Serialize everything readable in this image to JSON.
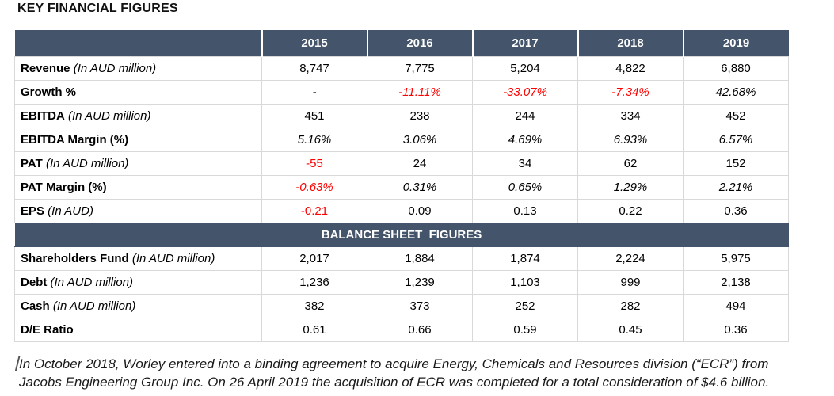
{
  "title": "KEY FINANCIAL FIGURES",
  "colors": {
    "header_background": "#44546A",
    "header_text": "#FFFFFF",
    "negative_text": "#FF0000",
    "grid_line": "#D9D9D9"
  },
  "table": {
    "years": [
      "2015",
      "2016",
      "2017",
      "2018",
      "2019"
    ],
    "income_rows": [
      {
        "label": "Revenue",
        "unit": "(In AUD million)",
        "value_style": "plain",
        "values": [
          "8,747",
          "7,775",
          "5,204",
          "4,822",
          "6,880"
        ]
      },
      {
        "label": "Growth %",
        "unit": "",
        "value_style": "italic",
        "values": [
          "-",
          "-11.11%",
          "-33.07%",
          "-7.34%",
          "42.68%"
        ]
      },
      {
        "label": "EBITDA",
        "unit": "(In AUD million)",
        "value_style": "plain",
        "values": [
          "451",
          "238",
          "244",
          "334",
          "452"
        ]
      },
      {
        "label": "EBITDA Margin (%)",
        "unit": "",
        "value_style": "italic",
        "values": [
          "5.16%",
          "3.06%",
          "4.69%",
          "6.93%",
          "6.57%"
        ]
      },
      {
        "label": "PAT",
        "unit": "(In AUD million)",
        "value_style": "plain",
        "values": [
          "-55",
          "24",
          "34",
          "62",
          "152"
        ]
      },
      {
        "label": "PAT Margin (%)",
        "unit": "",
        "value_style": "italic",
        "values": [
          "-0.63%",
          "0.31%",
          "0.65%",
          "1.29%",
          "2.21%"
        ]
      },
      {
        "label": "EPS",
        "unit": "(In AUD)",
        "value_style": "plain",
        "values": [
          "-0.21",
          "0.09",
          "0.13",
          "0.22",
          "0.36"
        ]
      }
    ],
    "section_header": "BALANCE SHEET  FIGURES",
    "balance_rows": [
      {
        "label": "Shareholders Fund",
        "unit": "(In AUD million)",
        "value_style": "plain",
        "values": [
          "2,017",
          "1,884",
          "1,874",
          "2,224",
          "5,975"
        ]
      },
      {
        "label": "Debt",
        "unit": "(In AUD million)",
        "value_style": "plain",
        "values": [
          "1,236",
          "1,239",
          "1,103",
          "999",
          "2,138"
        ]
      },
      {
        "label": "Cash",
        "unit": "(In AUD million)",
        "value_style": "plain",
        "values": [
          "382",
          "373",
          "252",
          "282",
          "494"
        ]
      },
      {
        "label": "D/E Ratio",
        "unit": "",
        "value_style": "plain",
        "values": [
          "0.61",
          "0.66",
          "0.59",
          "0.45",
          "0.36"
        ]
      }
    ]
  },
  "footnote": {
    "line1": "In October 2018, Worley entered into a binding agreement to acquire Energy, Chemicals and Resources division (“ECR”) from",
    "line2": "Jacobs Engineering Group Inc. On 26 April 2019 the acquisition of ECR was completed for a total consideration of $4.6 billion."
  }
}
